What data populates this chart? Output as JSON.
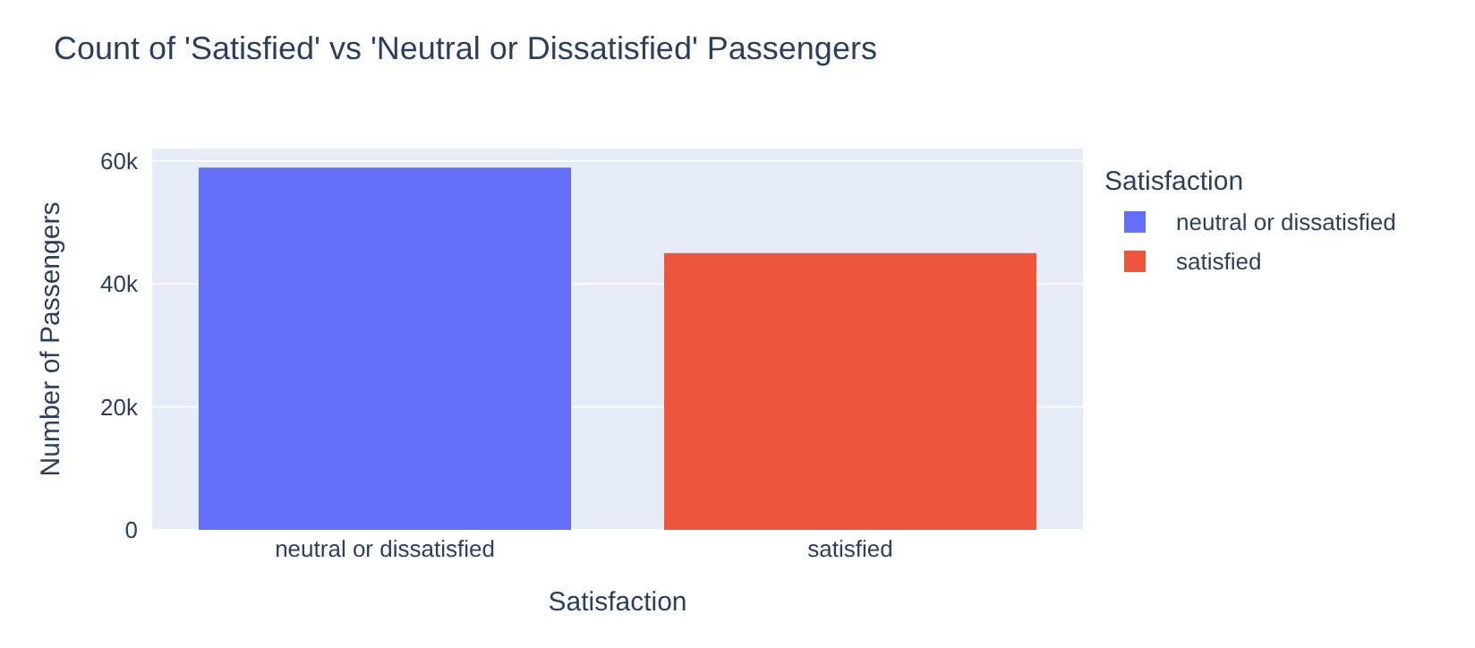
{
  "chart_data": {
    "type": "bar",
    "title": "Count of 'Satisfied' vs 'Neutral or Dissatisfied' Passengers",
    "xlabel": "Satisfaction",
    "ylabel": "Number of Passengers",
    "legend_title": "Satisfaction",
    "categories": [
      "neutral or dissatisfied",
      "satisfied"
    ],
    "series": [
      {
        "name": "neutral or dissatisfied",
        "color": "#636efa",
        "values": [
          58900,
          null
        ]
      },
      {
        "name": "satisfied",
        "color": "#ef553b",
        "values": [
          null,
          45000
        ]
      }
    ],
    "ylim": [
      0,
      62000
    ],
    "yticks": [
      {
        "value": 0,
        "label": "0"
      },
      {
        "value": 20000,
        "label": "20k"
      },
      {
        "value": 40000,
        "label": "40k"
      },
      {
        "value": 60000,
        "label": "60k"
      }
    ],
    "grid": "y",
    "legend": "top right"
  }
}
